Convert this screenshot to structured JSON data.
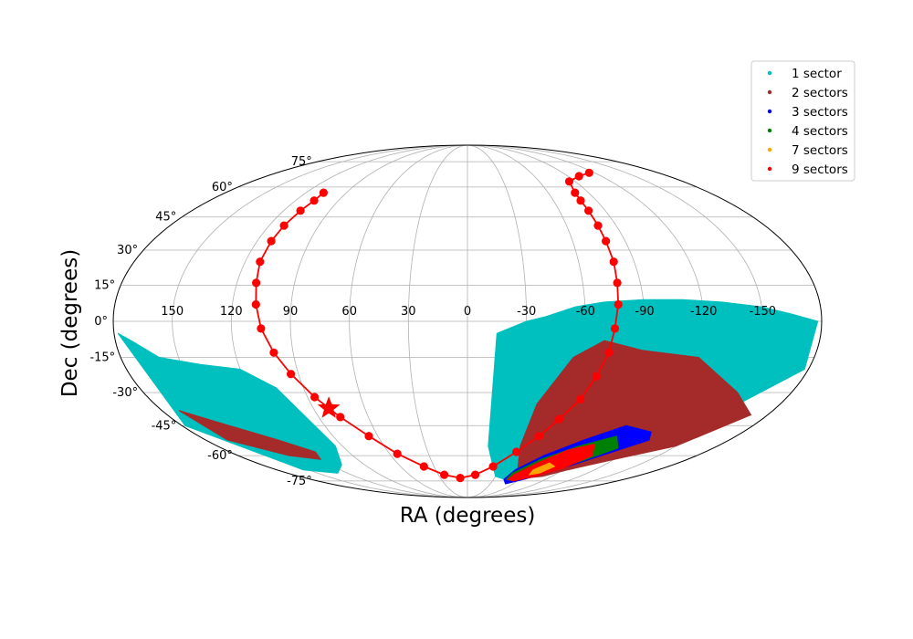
{
  "chart_data": {
    "type": "scatter",
    "projection": "mollweide",
    "xlabel": "RA (degrees)",
    "ylabel": "Dec (degrees)",
    "x_ticks": [
      "150",
      "120",
      "90",
      "60",
      "30",
      "0",
      "-30",
      "-60",
      "-90",
      "-120",
      "-150"
    ],
    "x_tick_values": [
      150,
      120,
      90,
      60,
      30,
      0,
      -30,
      -60,
      -90,
      -120,
      -150
    ],
    "y_ticks": [
      "-75°",
      "-60°",
      "-45°",
      "-30°",
      "-15°",
      "0°",
      "15°",
      "30°",
      "45°",
      "60°",
      "75°"
    ],
    "y_tick_values": [
      -75,
      -60,
      -45,
      -30,
      -15,
      0,
      15,
      30,
      45,
      60,
      75
    ],
    "grid": true,
    "legend_position": "top-right",
    "legend": [
      {
        "label": "1 sector",
        "color": "#00bfbf"
      },
      {
        "label": "2 sectors",
        "color": "#a52a2a"
      },
      {
        "label": "3 sectors",
        "color": "#0000ff"
      },
      {
        "label": "4 sectors",
        "color": "#008000"
      },
      {
        "label": "7 sectors",
        "color": "#ffa500"
      },
      {
        "label": "9 sectors",
        "color": "#ff0000"
      }
    ],
    "coverage_series": [
      {
        "name": "1 sector",
        "color": "#00bfbf",
        "regions": [
          {
            "lon": [
              -15,
              -30,
              -40,
              -55,
              -70,
              -90,
              -110,
              -130,
              -150,
              -165,
              -178,
              -178,
              -150,
              -120,
              -90,
              -70,
              -50,
              -30,
              -15
            ],
            "lat": [
              -5,
              0,
              2,
              6,
              8,
              9,
              9,
              8,
              6,
              3,
              0,
              -20,
              -40,
              -55,
              -65,
              -72,
              -75,
              -72,
              -55
            ]
          },
          {
            "lon": [
              178,
              172,
              160,
              140,
              120,
              105,
              95,
              110,
              130,
              155,
              178
            ],
            "lat": [
              -5,
              -8,
              -15,
              -18,
              -20,
              -28,
              -55,
              -65,
              -70,
              -68,
              -45
            ]
          }
        ]
      },
      {
        "name": "2 sectors",
        "color": "#a52a2a",
        "regions": [
          {
            "lon": [
              -40,
              -55,
              -70,
              -90,
              -120,
              -150,
              -170,
              -150,
              -120,
              -95,
              -80,
              -65,
              -50,
              -38
            ],
            "lat": [
              -35,
              -15,
              -8,
              -12,
              -15,
              -30,
              -40,
              -55,
              -62,
              -68,
              -72,
              -73,
              -70,
              -55
            ]
          },
          {
            "lon": [
              170,
              150,
              130,
              115,
              120,
              140,
              165
            ],
            "lat": [
              -38,
              -45,
              -52,
              -58,
              -62,
              -60,
              -52
            ]
          }
        ]
      },
      {
        "name": "3 sectors",
        "color": "#0000ff",
        "regions": [
          {
            "lon": [
              -45,
              -60,
              -80,
              -100,
              -120,
              -125,
              -105,
              -85,
              -65,
              -50,
              -42
            ],
            "lat": [
              -68,
              -60,
              -52,
              -45,
              -48,
              -52,
              -60,
              -68,
              -74,
              -77,
              -74
            ]
          }
        ]
      },
      {
        "name": "4 sectors",
        "color": "#008000",
        "regions": [
          {
            "lon": [
              -45,
              -60,
              -80,
              -100,
              -110,
              -95,
              -75,
              -55,
              -45
            ],
            "lat": [
              -70,
              -62,
              -55,
              -50,
              -56,
              -63,
              -70,
              -75,
              -74
            ]
          }
        ]
      },
      {
        "name": "9 sectors",
        "color": "#ff0000",
        "regions": [
          {
            "lon": [
              -48,
              -60,
              -75,
              -90,
              -98,
              -88,
              -72,
              -55,
              -47
            ],
            "lat": [
              -71,
              -64,
              -57,
              -54,
              -60,
              -67,
              -72,
              -75,
              -74
            ]
          }
        ]
      },
      {
        "name": "7 sectors",
        "color": "#ffa500",
        "regions": [
          {
            "lon": [
              -62,
              -70,
              -78,
              -72,
              -64
            ],
            "lat": [
              -68,
              -64,
              -66,
              -70,
              -71
            ]
          }
        ]
      }
    ],
    "path_series": {
      "color": "#ff0000",
      "points": [
        {
          "ra": 107,
          "dec": 57
        },
        {
          "ra": 107,
          "dec": 53
        },
        {
          "ra": 109,
          "dec": 48
        },
        {
          "ra": 111,
          "dec": 41
        },
        {
          "ra": 112,
          "dec": 34
        },
        {
          "ra": 112,
          "dec": 25
        },
        {
          "ra": 110,
          "dec": 16
        },
        {
          "ra": 108,
          "dec": 7
        },
        {
          "ra": 105,
          "dec": -3
        },
        {
          "ra": 100,
          "dec": -13
        },
        {
          "ra": 94,
          "dec": -22
        },
        {
          "ra": 86,
          "dec": -32
        },
        {
          "ra": 77,
          "dec": -41
        },
        {
          "ra": 66,
          "dec": -50
        },
        {
          "ra": 54,
          "dec": -59
        },
        {
          "ra": 39,
          "dec": -66
        },
        {
          "ra": 24,
          "dec": -71
        },
        {
          "ra": 8,
          "dec": -73
        },
        {
          "ra": -8,
          "dec": -71
        },
        {
          "ra": -23,
          "dec": -66
        },
        {
          "ra": -37,
          "dec": -58
        },
        {
          "ra": -48,
          "dec": -50
        },
        {
          "ra": -56,
          "dec": -42
        },
        {
          "ra": -64,
          "dec": -33
        },
        {
          "ra": -69,
          "dec": -23
        },
        {
          "ra": -73,
          "dec": -13
        },
        {
          "ra": -75,
          "dec": -3
        },
        {
          "ra": -77,
          "dec": 7
        },
        {
          "ra": -78,
          "dec": 16
        },
        {
          "ra": -79,
          "dec": 25
        },
        {
          "ra": -79,
          "dec": 34
        },
        {
          "ra": -79,
          "dec": 41
        },
        {
          "ra": -79,
          "dec": 48
        },
        {
          "ra": -79,
          "dec": 53
        },
        {
          "ra": -80,
          "dec": 57
        },
        {
          "ra": -85,
          "dec": 63
        },
        {
          "ra": -100,
          "dec": 66
        },
        {
          "ra": -115,
          "dec": 68
        }
      ],
      "star": {
        "ra": 81,
        "dec": -37
      }
    }
  }
}
